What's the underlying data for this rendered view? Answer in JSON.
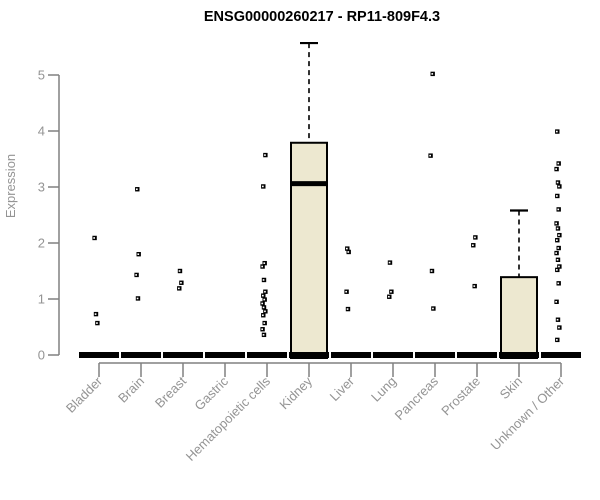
{
  "title": "ENSG00000260217 - RP11-809F4.3",
  "chart_data": {
    "type": "boxplot",
    "title": "ENSG00000260217 - RP11-809F4.3",
    "xlabel": "",
    "ylabel": "Expression",
    "ylim": [
      0,
      5
    ],
    "yticks": [
      0,
      1,
      2,
      3,
      4,
      5
    ],
    "grid": false,
    "legend": "none",
    "categories": [
      "Bladder",
      "Brain",
      "Breast",
      "Gastric",
      "Hematopoietic cells",
      "Kidney",
      "Liver",
      "Lung",
      "Pancreas",
      "Prostate",
      "Skin",
      "Unknown / Other"
    ],
    "boxes": [
      {
        "category": "Bladder",
        "q1": 0,
        "median": 0,
        "q3": 0,
        "whisker_high": 0,
        "outliers": [
          2.09,
          0.73,
          0.57
        ]
      },
      {
        "category": "Brain",
        "q1": 0,
        "median": 0,
        "q3": 0,
        "whisker_high": 0,
        "outliers": [
          2.96,
          1.8,
          1.43,
          1.01
        ]
      },
      {
        "category": "Breast",
        "q1": 0,
        "median": 0,
        "q3": 0,
        "whisker_high": 0,
        "outliers": [
          1.5,
          1.29,
          1.19
        ]
      },
      {
        "category": "Gastric",
        "q1": 0,
        "median": 0,
        "q3": 0,
        "whisker_high": 0,
        "outliers": []
      },
      {
        "category": "Hematopoietic cells",
        "q1": 0,
        "median": 0,
        "q3": 0,
        "whisker_high": 0,
        "outliers": [
          3.57,
          3.01,
          1.64,
          1.58,
          1.34,
          1.13,
          1.06,
          0.99,
          0.92,
          0.85,
          0.78,
          0.71,
          0.57,
          0.46,
          0.36
        ]
      },
      {
        "category": "Kidney",
        "q1": 0,
        "median": 3.06,
        "q3": 3.79,
        "whisker_high": 5.57,
        "outliers": []
      },
      {
        "category": "Liver",
        "q1": 0,
        "median": 0,
        "q3": 0,
        "whisker_high": 0,
        "outliers": [
          1.9,
          1.84,
          1.13,
          0.82
        ]
      },
      {
        "category": "Lung",
        "q1": 0,
        "median": 0,
        "q3": 0,
        "whisker_high": 0,
        "outliers": [
          1.65,
          1.13,
          1.04
        ]
      },
      {
        "category": "Pancreas",
        "q1": 0,
        "median": 0,
        "q3": 0,
        "whisker_high": 0,
        "outliers": [
          5.02,
          3.56,
          1.5,
          0.83
        ]
      },
      {
        "category": "Prostate",
        "q1": 0,
        "median": 0,
        "q3": 0,
        "whisker_high": 0,
        "outliers": [
          2.1,
          1.96,
          1.23
        ]
      },
      {
        "category": "Skin",
        "q1": 0,
        "median": 0,
        "q3": 1.39,
        "whisker_high": 2.58,
        "outliers": []
      },
      {
        "category": "Unknown / Other",
        "q1": 0,
        "median": 0,
        "q3": 0,
        "whisker_high": 0,
        "outliers": [
          3.99,
          3.42,
          3.32,
          3.08,
          3.01,
          2.84,
          2.6,
          2.35,
          2.26,
          2.14,
          2.05,
          1.91,
          1.82,
          1.7,
          1.58,
          1.52,
          1.28,
          0.95,
          0.63,
          0.49,
          0.27
        ]
      }
    ],
    "colors": {
      "box_fill": "#EDE8D0",
      "box_stroke": "#000000",
      "marker": "#000000",
      "axis_line": "#808080",
      "tick_text": "#949494",
      "title_text": "#000000",
      "background": "#FFFFFF"
    }
  }
}
